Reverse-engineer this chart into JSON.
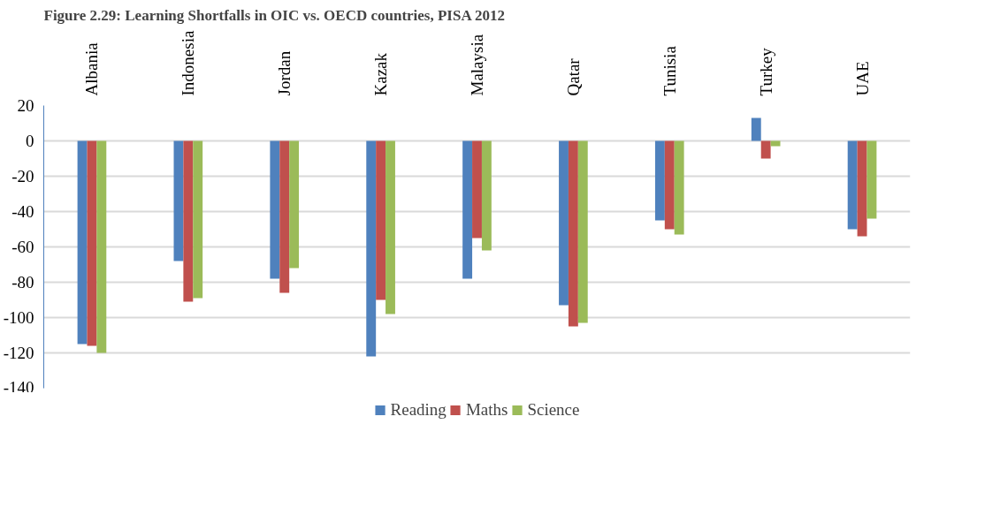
{
  "chart_data": {
    "type": "bar",
    "title": "Figure 2.29: Learning Shortfalls in OIC vs. OECD countries, PISA 2012",
    "categories": [
      "Albania",
      "Indonesia",
      "Jordan",
      "Kazak",
      "Malaysia",
      "Qatar",
      "Tunisia",
      "Turkey",
      "UAE"
    ],
    "series": [
      {
        "name": "Reading",
        "color": "#4f81bd",
        "values": [
          -115,
          -68,
          -78,
          -122,
          -78,
          -93,
          -45,
          13,
          -50
        ]
      },
      {
        "name": "Maths",
        "color": "#c0504d",
        "values": [
          -116,
          -91,
          -86,
          -90,
          -55,
          -105,
          -50,
          -10,
          -54
        ]
      },
      {
        "name": "Science",
        "color": "#9bbb59",
        "values": [
          -120,
          -89,
          -72,
          -98,
          -62,
          -103,
          -53,
          -3,
          -44
        ]
      }
    ],
    "ylim": [
      -140,
      20
    ],
    "yticks": [
      -140,
      -120,
      -100,
      -80,
      -60,
      -40,
      -20,
      0,
      20
    ],
    "grid": "y",
    "legend": "bottom"
  }
}
